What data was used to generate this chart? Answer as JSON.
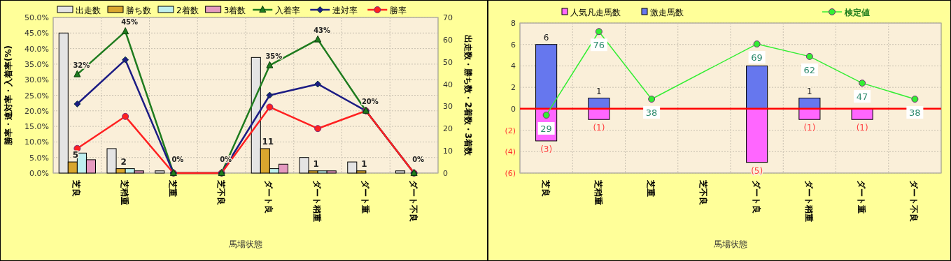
{
  "chart_data": [
    {
      "type": "bar",
      "xlabel": "馬場状態",
      "ylabel": "勝率・連対率・入着率(%)",
      "y2label": "出走数・勝ち数・2着数・3着数",
      "categories": [
        "芝良",
        "芝稍重",
        "芝重",
        "芝不良",
        "ダート良",
        "ダート稍重",
        "ダート重",
        "ダート不良"
      ],
      "ylim": [
        0,
        50
      ],
      "yticks": [
        {
          "value": 0,
          "label": "0.0%"
        },
        {
          "value": 5,
          "label": "5.0%"
        },
        {
          "value": 10,
          "label": "10.0%"
        },
        {
          "value": 15,
          "label": "15.0%"
        },
        {
          "value": 20,
          "label": "20.0%"
        },
        {
          "value": 25,
          "label": "25.0%"
        },
        {
          "value": 30,
          "label": "30.0%"
        },
        {
          "value": 35,
          "label": "35.0%"
        },
        {
          "value": 40,
          "label": "40.0%"
        },
        {
          "value": 45,
          "label": "45.0%"
        },
        {
          "value": 50,
          "label": "50.0%"
        }
      ],
      "y2lim": [
        0,
        70
      ],
      "y2ticks": [
        0,
        10,
        20,
        30,
        40,
        50,
        60,
        70
      ],
      "grid": true,
      "legend": "top",
      "series": [
        {
          "name": "出走数",
          "axis": "y2",
          "color": "#e4e4e4",
          "values": [
            63,
            11,
            1,
            0,
            52,
            7,
            5,
            1
          ]
        },
        {
          "name": "勝ち数",
          "axis": "y2",
          "color": "#d9a62e",
          "values": [
            5,
            2,
            0,
            0,
            11,
            1,
            1,
            0
          ],
          "value_labels": [
            "5",
            "2",
            null,
            null,
            "11",
            "1",
            "1",
            null
          ]
        },
        {
          "name": "2着数",
          "axis": "y2",
          "color": "#bff0ef",
          "values": [
            9,
            2,
            0,
            0,
            2,
            1,
            0,
            0
          ]
        },
        {
          "name": "3着数",
          "axis": "y2",
          "color": "#e59ac0",
          "values": [
            6,
            1,
            0,
            0,
            4,
            1,
            0,
            0
          ]
        },
        {
          "name": "入着率",
          "type": "line",
          "color": "#1e7b1e",
          "marker": "triangle",
          "values": [
            31.7,
            45.5,
            0,
            0,
            34.6,
            42.9,
            20,
            0
          ],
          "value_labels": [
            "32%",
            "45%",
            "0%",
            "0%",
            "35%",
            "43%",
            "20%",
            "0%"
          ]
        },
        {
          "name": "連対率",
          "type": "line",
          "color": "#1c1c84",
          "marker": "diamond",
          "values": [
            22.2,
            36.4,
            0,
            0,
            25,
            28.6,
            20,
            0
          ]
        },
        {
          "name": "勝率",
          "type": "line",
          "color": "#ff2020",
          "marker": "circle",
          "values": [
            7.9,
            18.2,
            0,
            0,
            21.2,
            14.3,
            20,
            0
          ]
        }
      ]
    },
    {
      "type": "bar",
      "stacked": true,
      "xlabel": "馬場状態",
      "categories": [
        "芝良",
        "芝稍重",
        "芝重",
        "芝不良",
        "ダート良",
        "ダート稍重",
        "ダート重",
        "ダート不良"
      ],
      "ylim": [
        -6,
        8
      ],
      "yticks": [
        {
          "value": -6,
          "label": "(6)"
        },
        {
          "value": -4,
          "label": "(4)"
        },
        {
          "value": -2,
          "label": "(2)"
        },
        0,
        2,
        4,
        6,
        8
      ],
      "y2lim": [
        -3.6,
        80.8
      ],
      "grid": true,
      "legend": "top",
      "ref_lines": [
        {
          "axis": "y",
          "value": 0,
          "color": "#ff0000"
        }
      ],
      "series": [
        {
          "name": "人気凡走馬数",
          "color": "#ff66ff",
          "values": [
            -3,
            -1,
            0,
            0,
            -5,
            -1,
            -1,
            0
          ],
          "value_labels": [
            "(3)",
            "(1)",
            null,
            null,
            "(5)",
            "(1)",
            "(1)",
            null
          ]
        },
        {
          "name": "激走馬数",
          "color": "#6677ee",
          "values": [
            6,
            1,
            0,
            0,
            4,
            1,
            0,
            0
          ],
          "value_labels": [
            "6",
            "1",
            null,
            null,
            null,
            "1",
            null,
            null
          ]
        },
        {
          "name": "検定値",
          "type": "line",
          "axis": "y2",
          "color": "#33ee33",
          "marker": "circle",
          "values": [
            29,
            76,
            38,
            null,
            69,
            62,
            47,
            38
          ],
          "value_labels": [
            "29",
            "76",
            "38",
            null,
            "69",
            "62",
            "47",
            "38"
          ]
        }
      ]
    }
  ]
}
